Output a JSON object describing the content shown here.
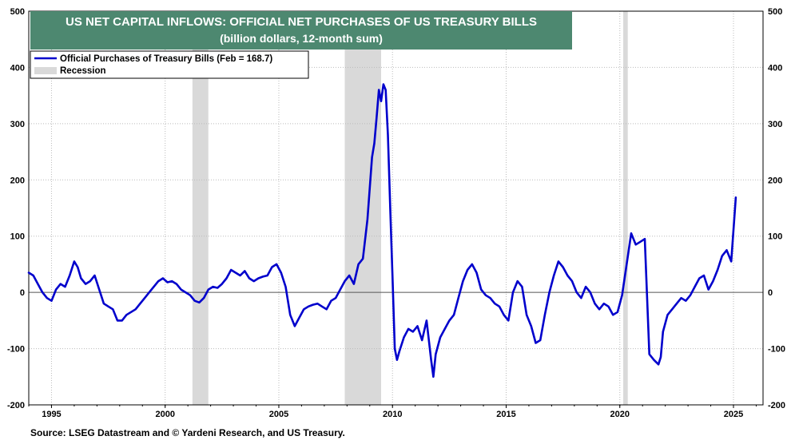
{
  "chart_data": {
    "type": "line",
    "title": "US NET CAPITAL INFLOWS: OFFICIAL NET PURCHASES OF US TREASURY BILLS",
    "subtitle": "(billion dollars, 12-month sum)",
    "source": "Source: LSEG Datastream and © Yardeni Research, and US Treasury.",
    "xlim": [
      1994.0,
      2026.3
    ],
    "ylim": [
      -200,
      500
    ],
    "x_ticks": [
      1995,
      2000,
      2005,
      2010,
      2015,
      2020,
      2025
    ],
    "x_tick_labels": [
      "1995",
      "2000",
      "2005",
      "2010",
      "2015",
      "2020",
      "2025"
    ],
    "y_ticks": [
      -200,
      -100,
      0,
      100,
      200,
      300,
      400,
      500
    ],
    "y_tick_labels": [
      "-200",
      "-100",
      "0",
      "100",
      "200",
      "300",
      "400",
      "500"
    ],
    "grid": true,
    "colors": {
      "series": "#0000cc",
      "recession": "#d9d9d9",
      "title_box": "#4d8870",
      "zero_line": "#555555",
      "grid": "#bbbbbb"
    },
    "legend": {
      "placement": "top-left",
      "series_label": "Official Purchases of Treasury Bills (Feb = 168.7)",
      "recession_label": "Recession"
    },
    "recessions": [
      [
        2001.2,
        2001.9
      ],
      [
        2007.9,
        2009.5
      ],
      [
        2020.15,
        2020.35
      ]
    ],
    "series": [
      {
        "name": "Official Purchases of Treasury Bills",
        "x": [
          1994.0,
          1994.2,
          1994.4,
          1994.6,
          1994.8,
          1995.0,
          1995.2,
          1995.4,
          1995.6,
          1995.8,
          1996.0,
          1996.15,
          1996.3,
          1996.5,
          1996.7,
          1996.9,
          1997.1,
          1997.3,
          1997.5,
          1997.7,
          1997.9,
          1998.1,
          1998.3,
          1998.5,
          1998.7,
          1998.9,
          1999.1,
          1999.3,
          1999.5,
          1999.7,
          1999.9,
          2000.1,
          2000.3,
          2000.5,
          2000.7,
          2000.9,
          2001.1,
          2001.3,
          2001.5,
          2001.7,
          2001.9,
          2002.1,
          2002.3,
          2002.5,
          2002.7,
          2002.9,
          2003.1,
          2003.3,
          2003.5,
          2003.7,
          2003.9,
          2004.1,
          2004.3,
          2004.5,
          2004.7,
          2004.9,
          2005.1,
          2005.3,
          2005.5,
          2005.7,
          2005.9,
          2006.1,
          2006.3,
          2006.5,
          2006.7,
          2006.9,
          2007.1,
          2007.3,
          2007.5,
          2007.7,
          2007.9,
          2008.1,
          2008.3,
          2008.5,
          2008.7,
          2008.9,
          2009.1,
          2009.2,
          2009.3,
          2009.4,
          2009.5,
          2009.6,
          2009.7,
          2009.8,
          2009.9,
          2010.0,
          2010.1,
          2010.2,
          2010.3,
          2010.5,
          2010.7,
          2010.9,
          2011.1,
          2011.3,
          2011.5,
          2011.7,
          2011.8,
          2011.9,
          2012.1,
          2012.3,
          2012.5,
          2012.7,
          2012.9,
          2013.1,
          2013.3,
          2013.5,
          2013.7,
          2013.9,
          2014.1,
          2014.3,
          2014.5,
          2014.7,
          2014.9,
          2015.1,
          2015.3,
          2015.5,
          2015.7,
          2015.9,
          2016.1,
          2016.3,
          2016.5,
          2016.7,
          2016.9,
          2017.1,
          2017.3,
          2017.5,
          2017.7,
          2017.9,
          2018.1,
          2018.3,
          2018.5,
          2018.7,
          2018.9,
          2019.1,
          2019.3,
          2019.5,
          2019.7,
          2019.9,
          2020.1,
          2020.3,
          2020.5,
          2020.7,
          2020.9,
          2021.1,
          2021.3,
          2021.5,
          2021.7,
          2021.8,
          2021.9,
          2022.1,
          2022.3,
          2022.5,
          2022.7,
          2022.9,
          2023.1,
          2023.3,
          2023.5,
          2023.7,
          2023.9,
          2024.1,
          2024.3,
          2024.5,
          2024.7,
          2024.9,
          2025.1
        ],
        "values": [
          35,
          30,
          15,
          0,
          -10,
          -15,
          5,
          15,
          10,
          30,
          55,
          45,
          25,
          15,
          20,
          30,
          5,
          -20,
          -25,
          -30,
          -50,
          -50,
          -40,
          -35,
          -30,
          -20,
          -10,
          0,
          10,
          20,
          25,
          18,
          20,
          15,
          5,
          0,
          -5,
          -15,
          -18,
          -10,
          5,
          10,
          8,
          15,
          25,
          40,
          35,
          30,
          38,
          25,
          20,
          25,
          28,
          30,
          45,
          50,
          35,
          10,
          -40,
          -60,
          -45,
          -30,
          -25,
          -22,
          -20,
          -25,
          -30,
          -15,
          -10,
          5,
          20,
          30,
          15,
          50,
          60,
          130,
          240,
          265,
          310,
          360,
          340,
          370,
          360,
          280,
          150,
          30,
          -100,
          -120,
          -105,
          -80,
          -65,
          -70,
          -60,
          -85,
          -50,
          -120,
          -150,
          -110,
          -80,
          -65,
          -50,
          -40,
          -10,
          20,
          40,
          50,
          35,
          5,
          -5,
          -10,
          -20,
          -25,
          -40,
          -50,
          0,
          20,
          10,
          -40,
          -60,
          -90,
          -85,
          -40,
          0,
          30,
          55,
          45,
          30,
          20,
          0,
          -10,
          10,
          0,
          -20,
          -30,
          -20,
          -25,
          -40,
          -35,
          -5,
          50,
          105,
          85,
          90,
          95,
          -110,
          -120,
          -128,
          -115,
          -70,
          -40,
          -30,
          -20,
          -10,
          -15,
          -5,
          10,
          25,
          30,
          5,
          20,
          40,
          65,
          75,
          55,
          168.7
        ]
      }
    ]
  }
}
